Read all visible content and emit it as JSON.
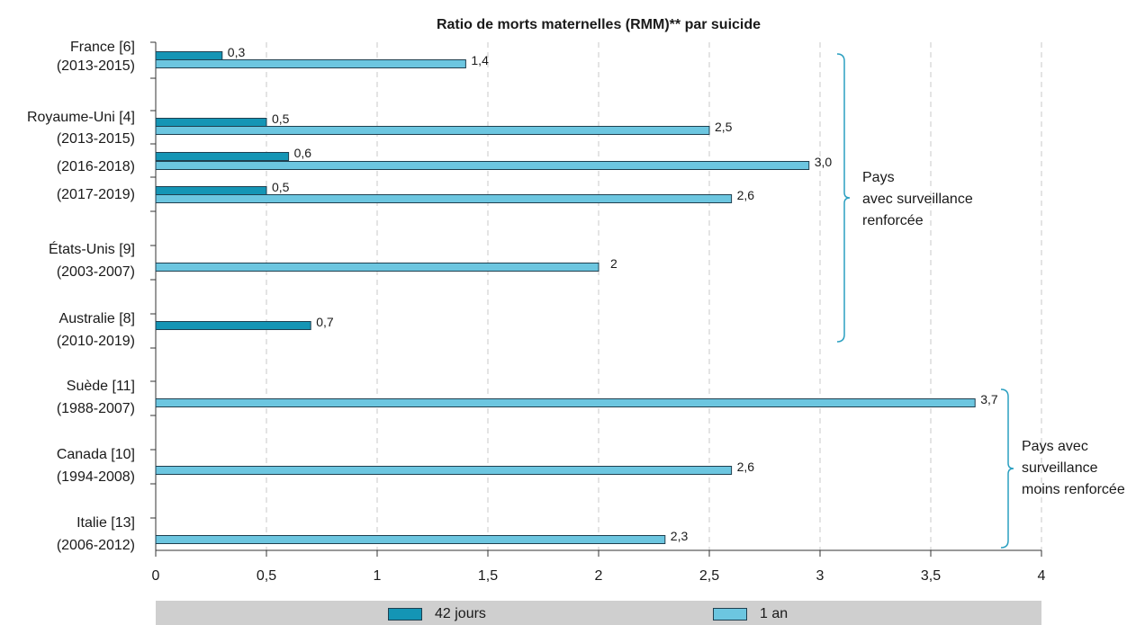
{
  "chart_data": {
    "type": "bar",
    "orientation": "horizontal",
    "title": "Ratio de morts maternelles (RMM)** par suicide",
    "xlim": [
      0,
      4
    ],
    "xticks": [
      "0",
      "0,5",
      "1",
      "1,5",
      "2",
      "2,5",
      "3",
      "3,5",
      "4"
    ],
    "grid": "vertical dashed",
    "legend_position": "bottom",
    "series": [
      {
        "name": "42 jours",
        "color": "#1495b5"
      },
      {
        "name": "1 an",
        "color": "#6cc6e0"
      }
    ],
    "groups": [
      {
        "label1": "France [6]",
        "label2": "(2013-2015)",
        "bars": [
          {
            "series": 0,
            "value": 0.3,
            "label": "0,3"
          },
          {
            "series": 1,
            "value": 1.4,
            "label": "1,4"
          }
        ]
      },
      {
        "label1": "Royaume-Uni [4]",
        "label2": "(2013-2015)",
        "bars": [
          {
            "series": 0,
            "value": 0.5,
            "label": "0,5"
          },
          {
            "series": 1,
            "value": 2.5,
            "label": "2,5"
          }
        ]
      },
      {
        "label1": "",
        "label2": "(2016-2018)",
        "bars": [
          {
            "series": 0,
            "value": 0.6,
            "label": "0,6"
          },
          {
            "series": 1,
            "value": 2.95,
            "label": "3,0"
          }
        ]
      },
      {
        "label1": "",
        "label2": "(2017-2019)",
        "bars": [
          {
            "series": 0,
            "value": 0.5,
            "label": "0,5"
          },
          {
            "series": 1,
            "value": 2.6,
            "label": "2,6"
          }
        ]
      },
      {
        "label1": "États-Unis [9]",
        "label2": "(2003-2007)",
        "bars": [
          {
            "series": 1,
            "value": 2.0,
            "label": "2"
          }
        ]
      },
      {
        "label1": "Australie [8]",
        "label2": "(2010-2019)",
        "bars": [
          {
            "series": 0,
            "value": 0.7,
            "label": "0,7"
          }
        ]
      },
      {
        "label1": "Suède [11]",
        "label2": "(1988-2007)",
        "bars": [
          {
            "series": 1,
            "value": 3.7,
            "label": "3,7"
          }
        ]
      },
      {
        "label1": "Canada [10]",
        "label2": "(1994-2008)",
        "bars": [
          {
            "series": 1,
            "value": 2.6,
            "label": "2,6"
          }
        ]
      },
      {
        "label1": "Italie [13]",
        "label2": "(2006-2012)",
        "bars": [
          {
            "series": 1,
            "value": 2.3,
            "label": "2,3"
          }
        ]
      }
    ],
    "annotations": [
      {
        "lines": [
          "Pays",
          "avec surveillance",
          "renforcée"
        ]
      },
      {
        "lines": [
          "Pays avec",
          "surveillance",
          "moins renforcée"
        ]
      }
    ]
  }
}
